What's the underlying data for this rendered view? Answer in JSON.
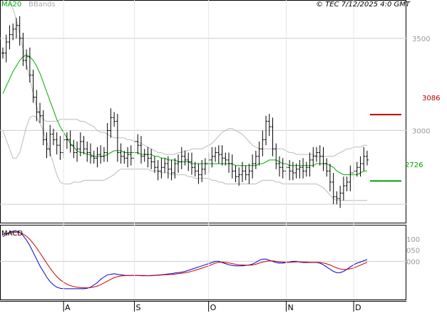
{
  "header": {
    "ma_legend": "MA20",
    "bb_legend": "BBands",
    "timestamp": "© TEC 7/12/2025 4:0 GMT"
  },
  "colors": {
    "price": "#000000",
    "ma": "#00aa00",
    "bands": "#bbbbbb",
    "resistance": "#c00000",
    "support": "#00a000",
    "macd": "#0000cc",
    "signal": "#cc0000",
    "grid": "#cccccc"
  },
  "chart_data": [
    {
      "type": "ohlc",
      "title": "",
      "x_labels": [
        {
          "label": "A",
          "index": 18
        },
        {
          "label": "S",
          "index": 39
        },
        {
          "label": "O",
          "index": 61
        },
        {
          "label": "N",
          "index": 84
        },
        {
          "label": "D",
          "index": 104
        }
      ],
      "y_ticks": [
        {
          "label": "3500",
          "value": 3.5
        },
        {
          "label": "3000",
          "value": 3.0
        }
      ],
      "ylim": [
        2.5,
        3.7
      ],
      "levels": [
        {
          "name": "resistance",
          "value": 3.086,
          "label": "3086"
        },
        {
          "name": "support",
          "value": 2.726,
          "label": "2726"
        }
      ],
      "close": [
        3.42,
        3.48,
        3.52,
        3.55,
        3.57,
        3.5,
        3.38,
        3.4,
        3.3,
        3.18,
        3.1,
        3.08,
        2.95,
        2.9,
        2.98,
        2.95,
        2.92,
        2.88,
        2.95,
        2.95,
        2.92,
        2.88,
        2.9,
        2.94,
        2.9,
        2.88,
        2.86,
        2.85,
        2.87,
        2.86,
        2.88,
        3.0,
        3.07,
        3.05,
        2.88,
        2.86,
        2.85,
        2.87,
        2.85,
        2.94,
        2.92,
        2.86,
        2.87,
        2.85,
        2.83,
        2.8,
        2.78,
        2.8,
        2.82,
        2.79,
        2.77,
        2.82,
        2.83,
        2.86,
        2.84,
        2.83,
        2.8,
        2.78,
        2.76,
        2.79,
        2.82,
        2.84,
        2.86,
        2.88,
        2.87,
        2.85,
        2.84,
        2.82,
        2.78,
        2.75,
        2.76,
        2.78,
        2.76,
        2.78,
        2.82,
        2.86,
        2.9,
        2.95,
        3.05,
        3.02,
        2.9,
        2.82,
        2.8,
        2.78,
        2.8,
        2.78,
        2.77,
        2.79,
        2.8,
        2.78,
        2.8,
        2.84,
        2.86,
        2.88,
        2.86,
        2.82,
        2.78,
        2.72,
        2.64,
        2.63,
        2.66,
        2.7,
        2.72,
        2.77,
        2.78,
        2.8,
        2.82,
        2.86,
        2.84
      ],
      "ma20": [
        3.2,
        3.24,
        3.28,
        3.32,
        3.35,
        3.38,
        3.4,
        3.41,
        3.4,
        3.38,
        3.35,
        3.31,
        3.26,
        3.21,
        3.16,
        3.11,
        3.06,
        3.02,
        2.99,
        2.96,
        2.93,
        2.91,
        2.89,
        2.88,
        2.88,
        2.87,
        2.87,
        2.86,
        2.86,
        2.86,
        2.86,
        2.87,
        2.88,
        2.89,
        2.89,
        2.89,
        2.88,
        2.88,
        2.88,
        2.88,
        2.88,
        2.87,
        2.87,
        2.87,
        2.87,
        2.86,
        2.86,
        2.85,
        2.85,
        2.84,
        2.84,
        2.84,
        2.83,
        2.83,
        2.83,
        2.83,
        2.82,
        2.82,
        2.82,
        2.82,
        2.82,
        2.82,
        2.82,
        2.82,
        2.82,
        2.82,
        2.82,
        2.82,
        2.82,
        2.81,
        2.81,
        2.81,
        2.81,
        2.81,
        2.81,
        2.81,
        2.82,
        2.82,
        2.83,
        2.84,
        2.84,
        2.84,
        2.83,
        2.82,
        2.82,
        2.81,
        2.81,
        2.81,
        2.81,
        2.81,
        2.81,
        2.81,
        2.81,
        2.82,
        2.82,
        2.82,
        2.82,
        2.81,
        2.8,
        2.78,
        2.77,
        2.76,
        2.76,
        2.76,
        2.76,
        2.76,
        2.77,
        2.78,
        2.78
      ],
      "bb_upper": [
        3.7,
        3.72,
        3.7,
        3.66,
        3.6,
        3.52,
        3.44,
        3.36,
        3.28,
        3.2,
        3.13,
        3.08,
        3.06,
        3.05,
        3.05,
        3.05,
        3.05,
        3.06,
        3.06,
        3.06,
        3.06,
        3.06,
        3.06,
        3.05,
        3.05,
        3.04,
        3.03,
        3.02,
        3.0,
        2.99,
        2.99,
        2.98,
        2.97,
        2.96,
        2.96,
        2.96,
        2.96,
        2.95,
        2.95,
        2.94,
        2.94,
        2.93,
        2.92,
        2.91,
        2.9,
        2.89,
        2.88,
        2.88,
        2.87,
        2.87,
        2.87,
        2.87,
        2.88,
        2.88,
        2.89,
        2.89,
        2.9,
        2.9,
        2.9,
        2.9,
        2.91,
        2.92,
        2.93,
        2.95,
        2.97,
        2.99,
        3.0,
        3.01,
        3.01,
        3.0,
        2.99,
        2.98,
        2.96,
        2.94,
        2.92,
        2.91,
        2.9,
        2.9,
        2.9,
        2.9,
        2.9,
        2.9,
        2.9,
        2.9,
        2.89,
        2.88,
        2.88,
        2.87,
        2.87,
        2.87,
        2.87,
        2.87,
        2.87,
        2.86,
        2.86,
        2.86,
        2.86,
        2.86,
        2.86,
        2.87,
        2.88,
        2.89,
        2.9,
        2.9,
        2.91,
        2.91,
        2.91,
        2.92,
        2.92
      ],
      "bb_lower": [
        3.0,
        2.95,
        2.9,
        2.85,
        2.85,
        2.88,
        2.95,
        3.02,
        3.07,
        3.08,
        3.07,
        3.04,
        3.0,
        2.94,
        2.88,
        2.82,
        2.76,
        2.72,
        2.71,
        2.71,
        2.71,
        2.72,
        2.72,
        2.72,
        2.73,
        2.73,
        2.73,
        2.73,
        2.73,
        2.73,
        2.73,
        2.74,
        2.75,
        2.76,
        2.78,
        2.79,
        2.79,
        2.79,
        2.79,
        2.79,
        2.79,
        2.79,
        2.79,
        2.79,
        2.78,
        2.78,
        2.78,
        2.77,
        2.77,
        2.77,
        2.76,
        2.76,
        2.76,
        2.76,
        2.76,
        2.75,
        2.75,
        2.74,
        2.74,
        2.74,
        2.74,
        2.74,
        2.73,
        2.73,
        2.72,
        2.72,
        2.71,
        2.71,
        2.71,
        2.71,
        2.71,
        2.71,
        2.71,
        2.71,
        2.71,
        2.71,
        2.72,
        2.73,
        2.73,
        2.73,
        2.73,
        2.72,
        2.72,
        2.71,
        2.71,
        2.71,
        2.71,
        2.71,
        2.71,
        2.71,
        2.71,
        2.71,
        2.71,
        2.71,
        2.7,
        2.69,
        2.67,
        2.65,
        2.63,
        2.62,
        2.62,
        2.62,
        2.62,
        2.62,
        2.62,
        2.62,
        2.62,
        2.62,
        2.62
      ]
    },
    {
      "type": "line",
      "title": "MACD",
      "y_ticks": [
        {
          "label": "100",
          "value": 1.0
        },
        {
          "label": "050",
          "value": 0.5
        },
        {
          "label": "000",
          "value": 0.0
        }
      ],
      "ylim": [
        -1.7,
        1.6
      ],
      "series": [
        {
          "values": [
            1.1,
            1.2,
            1.3,
            1.35,
            1.35,
            1.3,
            1.15,
            0.95,
            0.7,
            0.4,
            0.1,
            -0.2,
            -0.45,
            -0.7,
            -0.9,
            -1.05,
            -1.15,
            -1.2,
            -1.22,
            -1.22,
            -1.22,
            -1.22,
            -1.22,
            -1.22,
            -1.22,
            -1.2,
            -1.15,
            -1.05,
            -0.95,
            -0.8,
            -0.7,
            -0.6,
            -0.58,
            -0.55,
            -0.58,
            -0.6,
            -0.62,
            -0.63,
            -0.63,
            -0.62,
            -0.63,
            -0.64,
            -0.64,
            -0.64,
            -0.63,
            -0.62,
            -0.61,
            -0.6,
            -0.58,
            -0.56,
            -0.55,
            -0.52,
            -0.5,
            -0.48,
            -0.45,
            -0.4,
            -0.35,
            -0.3,
            -0.25,
            -0.2,
            -0.15,
            -0.1,
            -0.05,
            0.0,
            0.0,
            -0.05,
            -0.1,
            -0.15,
            -0.18,
            -0.2,
            -0.2,
            -0.2,
            -0.18,
            -0.16,
            -0.12,
            -0.05,
            0.05,
            0.1,
            0.1,
            0.05,
            0.0,
            -0.05,
            -0.08,
            -0.08,
            -0.05,
            -0.03,
            0.0,
            0.0,
            -0.03,
            -0.05,
            -0.05,
            -0.05,
            -0.05,
            -0.05,
            -0.08,
            -0.15,
            -0.25,
            -0.35,
            -0.45,
            -0.5,
            -0.5,
            -0.45,
            -0.35,
            -0.25,
            -0.15,
            -0.08,
            -0.03,
            0.03,
            0.08
          ]
        },
        {
          "values": [
            1.2,
            1.25,
            1.28,
            1.3,
            1.3,
            1.28,
            1.22,
            1.12,
            0.98,
            0.8,
            0.6,
            0.38,
            0.15,
            -0.08,
            -0.3,
            -0.5,
            -0.68,
            -0.82,
            -0.93,
            -1.02,
            -1.08,
            -1.12,
            -1.15,
            -1.17,
            -1.18,
            -1.18,
            -1.17,
            -1.14,
            -1.1,
            -1.04,
            -0.96,
            -0.88,
            -0.8,
            -0.73,
            -0.68,
            -0.65,
            -0.64,
            -0.63,
            -0.63,
            -0.63,
            -0.63,
            -0.63,
            -0.63,
            -0.64,
            -0.64,
            -0.63,
            -0.62,
            -0.61,
            -0.6,
            -0.59,
            -0.58,
            -0.57,
            -0.55,
            -0.53,
            -0.51,
            -0.48,
            -0.44,
            -0.4,
            -0.35,
            -0.3,
            -0.25,
            -0.2,
            -0.14,
            -0.08,
            -0.04,
            -0.03,
            -0.05,
            -0.07,
            -0.1,
            -0.13,
            -0.15,
            -0.16,
            -0.17,
            -0.17,
            -0.16,
            -0.13,
            -0.08,
            -0.03,
            0.0,
            0.02,
            0.02,
            0.0,
            -0.02,
            -0.03,
            -0.04,
            -0.04,
            -0.03,
            -0.02,
            -0.02,
            -0.03,
            -0.03,
            -0.04,
            -0.04,
            -0.04,
            -0.05,
            -0.07,
            -0.11,
            -0.16,
            -0.23,
            -0.29,
            -0.34,
            -0.36,
            -0.36,
            -0.33,
            -0.29,
            -0.23,
            -0.17,
            -0.1,
            -0.04
          ]
        }
      ]
    }
  ]
}
